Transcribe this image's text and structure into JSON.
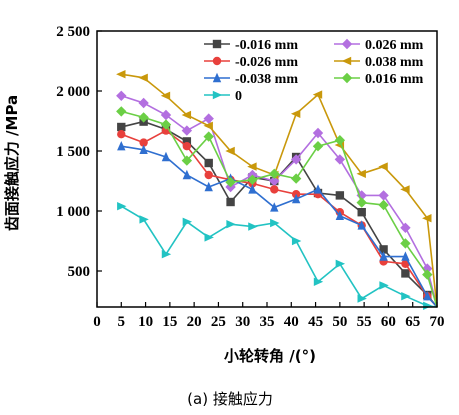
{
  "chart_data": {
    "type": "line",
    "title": "",
    "xlabel": "小轮转角 /(°)",
    "ylabel": "齿面接触应力 /MPa",
    "caption": "(a) 接触应力",
    "xlim": [
      0,
      70
    ],
    "ylim": [
      200,
      2500
    ],
    "xticks": [
      0,
      5,
      10,
      15,
      20,
      25,
      30,
      35,
      40,
      45,
      50,
      55,
      60,
      65,
      70
    ],
    "yticks": [
      500,
      1000,
      1500,
      2000,
      2500
    ],
    "ytick_labels": [
      "500",
      "1 000",
      "1 500",
      "2 000",
      "2 500"
    ],
    "grid": false,
    "legend_position": "top-right",
    "series": [
      {
        "name": "-0.016 mm",
        "color": "#444444",
        "marker": "square",
        "x": [
          5,
          9.6,
          14.2,
          18.5,
          23,
          27.5,
          32,
          36.5,
          41,
          45.5,
          50,
          54.5,
          59,
          63.5,
          68,
          70
        ],
        "y": [
          1700,
          1745,
          1680,
          1580,
          1400,
          1075,
          1280,
          1250,
          1450,
          1150,
          1130,
          990,
          680,
          480,
          300,
          200
        ]
      },
      {
        "name": "0.026 mm",
        "color": "#b36fe0",
        "marker": "diamond",
        "x": [
          5,
          9.6,
          14.2,
          18.5,
          23,
          27.5,
          32,
          36.5,
          41,
          45.5,
          50,
          54.5,
          59,
          63.5,
          68,
          70
        ],
        "y": [
          1960,
          1900,
          1800,
          1670,
          1770,
          1200,
          1300,
          1250,
          1430,
          1650,
          1430,
          1130,
          1130,
          860,
          520,
          200
        ]
      },
      {
        "name": "-0.026 mm",
        "color": "#e8403c",
        "marker": "circle",
        "x": [
          5,
          9.6,
          14.2,
          18.5,
          23,
          27.5,
          32,
          36.5,
          41,
          45.5,
          50,
          54.5,
          59,
          63.5,
          68,
          70
        ],
        "y": [
          1640,
          1570,
          1670,
          1540,
          1300,
          1260,
          1230,
          1180,
          1140,
          1140,
          990,
          880,
          580,
          560,
          290,
          200
        ]
      },
      {
        "name": "0.038 mm",
        "color": "#c9980b",
        "marker": "triangle-left",
        "x": [
          5,
          9.6,
          14.2,
          18.5,
          23,
          27.5,
          32,
          36.5,
          41,
          45.5,
          50,
          54.5,
          59,
          63.5,
          68,
          70
        ],
        "y": [
          2140,
          2110,
          1960,
          1800,
          1710,
          1500,
          1370,
          1300,
          1810,
          1970,
          1550,
          1310,
          1370,
          1180,
          940,
          200
        ]
      },
      {
        "name": "-0.038 mm",
        "color": "#2f6fd0",
        "marker": "triangle-up",
        "x": [
          5,
          9.6,
          14.2,
          18.5,
          23,
          27.5,
          32,
          36.5,
          41,
          45.5,
          50,
          54.5,
          59,
          63.5,
          68,
          70
        ],
        "y": [
          1540,
          1510,
          1450,
          1300,
          1200,
          1270,
          1180,
          1030,
          1100,
          1180,
          960,
          880,
          620,
          620,
          290,
          200
        ]
      },
      {
        "name": "0.016 mm",
        "color": "#6bcf45",
        "marker": "diamond",
        "x": [
          5,
          9.6,
          14.2,
          18.5,
          23,
          27.5,
          32,
          36.5,
          41,
          45.5,
          50,
          54.5,
          59,
          63.5,
          68,
          70
        ],
        "y": [
          1830,
          1780,
          1720,
          1420,
          1620,
          1240,
          1260,
          1310,
          1270,
          1540,
          1590,
          1070,
          1050,
          730,
          470,
          200
        ]
      },
      {
        "name": "0",
        "color": "#22c3c3",
        "marker": "triangle-right",
        "x": [
          5,
          9.6,
          14.2,
          18.5,
          23,
          27.5,
          32,
          36.5,
          41,
          45.5,
          50,
          54.5,
          59,
          63.5,
          68,
          70
        ],
        "y": [
          1040,
          930,
          640,
          910,
          780,
          890,
          870,
          900,
          750,
          410,
          560,
          270,
          380,
          290,
          210,
          200
        ]
      }
    ]
  }
}
